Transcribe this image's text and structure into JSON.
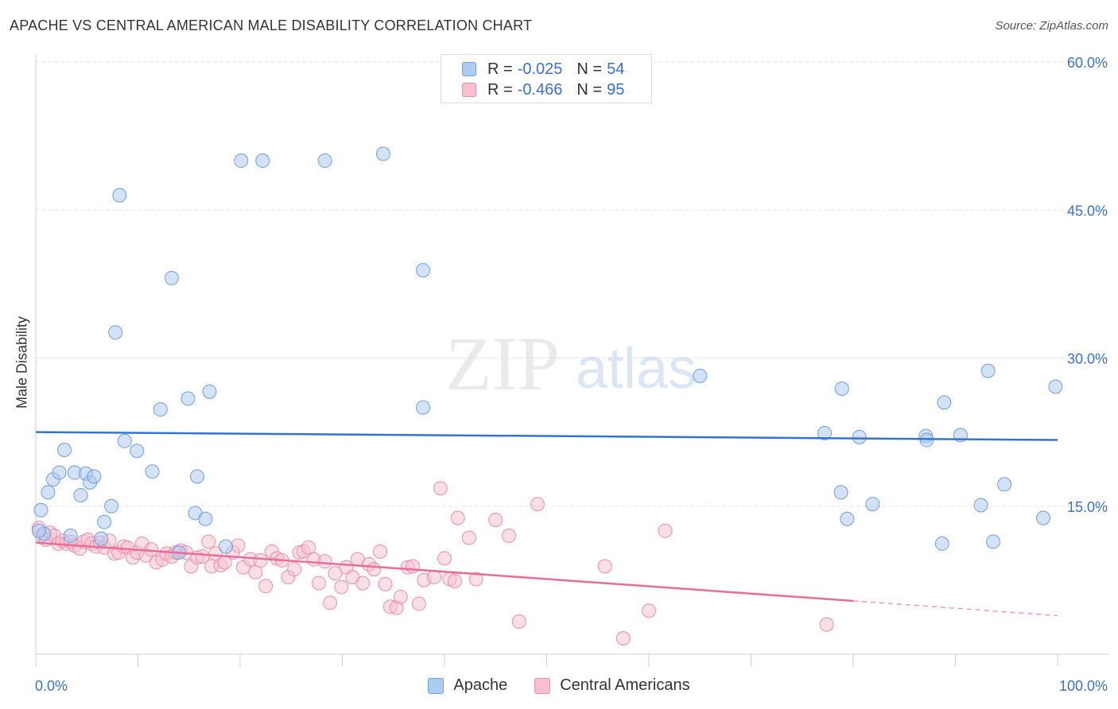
{
  "header": {
    "title": "APACHE VS CENTRAL AMERICAN MALE DISABILITY CORRELATION CHART",
    "source": "Source: ZipAtlas.com"
  },
  "watermark": {
    "zip": "ZIP",
    "atlas": "atlas"
  },
  "legend": {
    "rows": [
      {
        "r_label": "R = ",
        "r_value": "-0.025",
        "n_label": "N = ",
        "n_value": "54",
        "color": "#aecbf0",
        "border": "#6f9fdc"
      },
      {
        "r_label": "R = ",
        "r_value": "-0.466",
        "n_label": "N = ",
        "n_value": "95",
        "color": "#f8bfd0",
        "border": "#ea8fab"
      }
    ],
    "bottom": [
      {
        "label": "Apache",
        "color": "#aecbf0",
        "border": "#6f9fdc"
      },
      {
        "label": "Central Americans",
        "color": "#f8bfd0",
        "border": "#ea8fab"
      }
    ]
  },
  "chart_data": {
    "type": "scatter",
    "title": "APACHE VS CENTRAL AMERICAN MALE DISABILITY CORRELATION CHART",
    "xlabel": "",
    "ylabel": "Male Disability",
    "xlim": [
      0,
      100
    ],
    "ylim": [
      0,
      60
    ],
    "x_tick_labels": [
      "0.0%",
      "100.0%"
    ],
    "y_ticks": [
      15,
      30,
      45,
      60
    ],
    "y_tick_labels": [
      "15.0%",
      "30.0%",
      "45.0%",
      "60.0%"
    ],
    "grid": true,
    "colors": {
      "apache": "#3275d0",
      "central": "#e86d98",
      "axis_text": "#3b6fd1"
    },
    "series": [
      {
        "name": "Apache",
        "r": -0.025,
        "n": 54,
        "trend": {
          "x": [
            0,
            100
          ],
          "y": [
            22.5,
            21.7
          ]
        },
        "points": [
          [
            0.5,
            14.6
          ],
          [
            0.8,
            12.2
          ],
          [
            1.2,
            16.4
          ],
          [
            1.7,
            17.7
          ],
          [
            2.3,
            18.4
          ],
          [
            2.8,
            20.7
          ],
          [
            3.4,
            12.0
          ],
          [
            3.8,
            18.4
          ],
          [
            4.4,
            16.1
          ],
          [
            4.9,
            18.3
          ],
          [
            5.3,
            17.4
          ],
          [
            5.7,
            18.0
          ],
          [
            6.4,
            11.7
          ],
          [
            6.7,
            13.4
          ],
          [
            7.4,
            15.0
          ],
          [
            7.8,
            32.6
          ],
          [
            8.2,
            46.5
          ],
          [
            8.7,
            21.6
          ],
          [
            9.9,
            20.6
          ],
          [
            11.4,
            18.5
          ],
          [
            12.2,
            24.8
          ],
          [
            13.3,
            38.1
          ],
          [
            14.0,
            10.3
          ],
          [
            14.9,
            25.9
          ],
          [
            15.6,
            14.3
          ],
          [
            15.8,
            18.0
          ],
          [
            16.6,
            13.7
          ],
          [
            17.0,
            26.6
          ],
          [
            18.6,
            10.9
          ],
          [
            20.1,
            50.0
          ],
          [
            22.2,
            50.0
          ],
          [
            28.3,
            50.0
          ],
          [
            34.0,
            50.7
          ],
          [
            37.9,
            38.9
          ],
          [
            37.9,
            25.0
          ],
          [
            65.0,
            28.2
          ],
          [
            77.2,
            22.4
          ],
          [
            78.8,
            16.4
          ],
          [
            78.9,
            26.9
          ],
          [
            79.4,
            13.7
          ],
          [
            80.6,
            22.0
          ],
          [
            81.9,
            15.2
          ],
          [
            87.1,
            22.1
          ],
          [
            87.2,
            21.7
          ],
          [
            88.7,
            11.2
          ],
          [
            88.9,
            25.5
          ],
          [
            90.5,
            22.2
          ],
          [
            92.5,
            15.1
          ],
          [
            93.2,
            28.7
          ],
          [
            93.7,
            11.4
          ],
          [
            94.8,
            17.2
          ],
          [
            98.6,
            13.8
          ],
          [
            99.8,
            27.1
          ],
          [
            0.3,
            12.5
          ]
        ]
      },
      {
        "name": "Central Americans",
        "r": -0.466,
        "n": 95,
        "trend": {
          "x": [
            0,
            80
          ],
          "y": [
            11.3,
            5.4
          ]
        },
        "trend_dashed": {
          "x": [
            80,
            100
          ],
          "y": [
            5.4,
            3.9
          ]
        },
        "points": [
          [
            0.3,
            12.8
          ],
          [
            0.6,
            12.0
          ],
          [
            1.0,
            11.6
          ],
          [
            1.4,
            12.3
          ],
          [
            1.8,
            12.0
          ],
          [
            2.2,
            11.2
          ],
          [
            2.6,
            11.5
          ],
          [
            3.0,
            11.2
          ],
          [
            3.4,
            11.4
          ],
          [
            3.8,
            11.0
          ],
          [
            4.3,
            10.7
          ],
          [
            4.7,
            11.4
          ],
          [
            5.1,
            11.6
          ],
          [
            5.5,
            11.2
          ],
          [
            5.9,
            10.9
          ],
          [
            6.3,
            11.3
          ],
          [
            6.7,
            10.8
          ],
          [
            7.2,
            11.5
          ],
          [
            7.7,
            10.2
          ],
          [
            8.1,
            10.3
          ],
          [
            8.6,
            10.9
          ],
          [
            9.0,
            10.8
          ],
          [
            9.5,
            9.8
          ],
          [
            9.9,
            10.3
          ],
          [
            10.4,
            11.2
          ],
          [
            10.8,
            10.0
          ],
          [
            11.3,
            10.6
          ],
          [
            11.8,
            9.3
          ],
          [
            12.4,
            9.6
          ],
          [
            12.8,
            10.2
          ],
          [
            13.3,
            9.9
          ],
          [
            13.7,
            10.3
          ],
          [
            14.2,
            10.5
          ],
          [
            14.7,
            10.3
          ],
          [
            15.2,
            8.9
          ],
          [
            15.8,
            9.8
          ],
          [
            16.3,
            9.9
          ],
          [
            16.9,
            11.4
          ],
          [
            17.2,
            8.9
          ],
          [
            17.6,
            10.2
          ],
          [
            18.1,
            9.0
          ],
          [
            18.5,
            9.3
          ],
          [
            19.3,
            10.3
          ],
          [
            19.8,
            11.0
          ],
          [
            20.3,
            8.8
          ],
          [
            21.0,
            9.6
          ],
          [
            21.5,
            8.3
          ],
          [
            22.0,
            9.5
          ],
          [
            22.5,
            6.9
          ],
          [
            23.1,
            10.4
          ],
          [
            23.6,
            9.7
          ],
          [
            24.1,
            9.5
          ],
          [
            24.7,
            7.8
          ],
          [
            25.3,
            8.6
          ],
          [
            25.8,
            10.3
          ],
          [
            26.2,
            10.4
          ],
          [
            26.7,
            10.8
          ],
          [
            27.2,
            9.6
          ],
          [
            27.7,
            7.2
          ],
          [
            28.3,
            9.4
          ],
          [
            28.8,
            5.2
          ],
          [
            29.3,
            8.2
          ],
          [
            29.9,
            6.8
          ],
          [
            30.4,
            8.8
          ],
          [
            31.0,
            7.8
          ],
          [
            31.5,
            9.6
          ],
          [
            32.0,
            7.2
          ],
          [
            32.6,
            9.1
          ],
          [
            33.1,
            8.6
          ],
          [
            33.7,
            10.4
          ],
          [
            34.2,
            7.1
          ],
          [
            34.7,
            4.8
          ],
          [
            35.3,
            4.7
          ],
          [
            35.7,
            5.8
          ],
          [
            36.4,
            8.8
          ],
          [
            36.9,
            8.9
          ],
          [
            37.5,
            5.1
          ],
          [
            38.0,
            7.5
          ],
          [
            39.0,
            7.8
          ],
          [
            39.6,
            16.8
          ],
          [
            40.0,
            9.7
          ],
          [
            40.5,
            7.6
          ],
          [
            41.0,
            7.4
          ],
          [
            41.3,
            13.8
          ],
          [
            42.4,
            11.8
          ],
          [
            43.1,
            7.6
          ],
          [
            45.0,
            13.6
          ],
          [
            46.3,
            12.0
          ],
          [
            47.3,
            3.3
          ],
          [
            49.1,
            15.2
          ],
          [
            55.7,
            8.9
          ],
          [
            57.5,
            1.6
          ],
          [
            60.0,
            4.4
          ],
          [
            61.6,
            12.5
          ],
          [
            77.4,
            3.0
          ]
        ]
      }
    ]
  }
}
